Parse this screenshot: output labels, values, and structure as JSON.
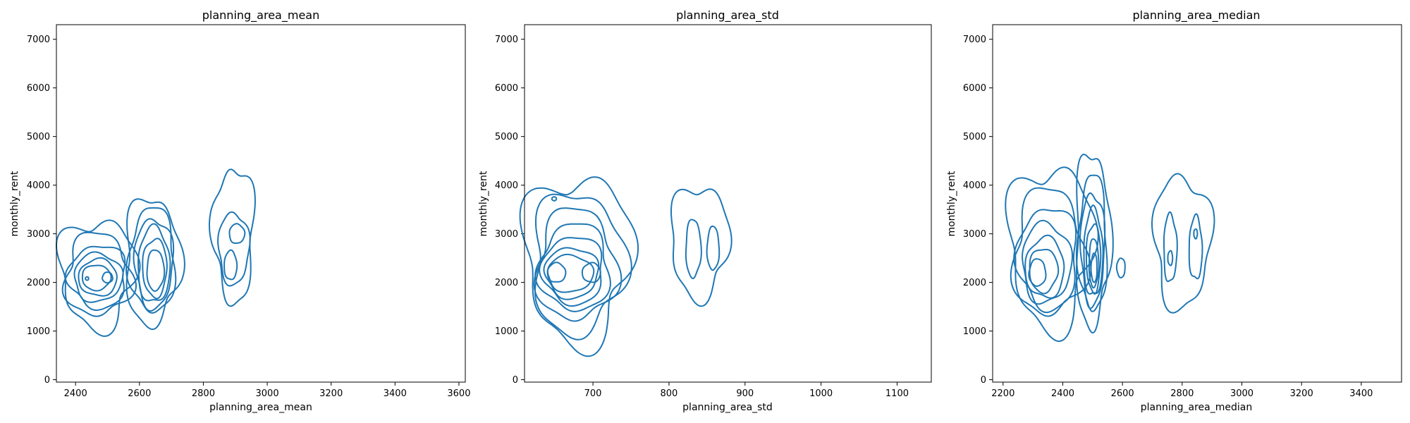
{
  "colors": {
    "contour": "#1f77b4",
    "axes": "#000000",
    "background": "#ffffff"
  },
  "chart_data": [
    {
      "type": "kde-contour",
      "title": "planning_area_mean",
      "xlabel": "planning_area_mean",
      "ylabel": "monthly_rent",
      "xlim": [
        2340,
        3620
      ],
      "ylim": [
        -50,
        7300
      ],
      "xticks": [
        2400,
        2600,
        2800,
        3000,
        3200,
        3400,
        3600
      ],
      "yticks": [
        0,
        1000,
        2000,
        3000,
        4000,
        5000,
        6000,
        7000
      ],
      "grid": false,
      "levels": [
        {
          "cx": 2468,
          "cy": 2200,
          "rx": 118,
          "ry": 1100,
          "w": 0.25
        },
        {
          "cx": 2640,
          "cy": 2450,
          "rx": 86,
          "ry": 1300,
          "w": 0.2
        },
        {
          "cx": 2470,
          "cy": 2150,
          "rx": 103,
          "ry": 850,
          "w": 0.2
        },
        {
          "cx": 2640,
          "cy": 2450,
          "rx": 72,
          "ry": 1080,
          "w": 0.15
        },
        {
          "cx": 2470,
          "cy": 2120,
          "rx": 90,
          "ry": 650,
          "w": 0.15
        },
        {
          "cx": 2645,
          "cy": 2400,
          "rx": 60,
          "ry": 920,
          "w": 0.12
        },
        {
          "cx": 2470,
          "cy": 2100,
          "rx": 75,
          "ry": 500,
          "w": 0.1
        },
        {
          "cx": 2645,
          "cy": 2350,
          "rx": 50,
          "ry": 780,
          "w": 0.1
        },
        {
          "cx": 2470,
          "cy": 2100,
          "rx": 60,
          "ry": 380,
          "w": 0.08
        },
        {
          "cx": 2648,
          "cy": 2300,
          "rx": 38,
          "ry": 600,
          "w": 0.08
        },
        {
          "cx": 2465,
          "cy": 2100,
          "rx": 45,
          "ry": 260,
          "w": 0.06
        },
        {
          "cx": 2650,
          "cy": 2250,
          "rx": 27,
          "ry": 420,
          "w": 0.06
        },
        {
          "cx": 2500,
          "cy": 2100,
          "rx": 16,
          "ry": 110,
          "w": 0.05
        },
        {
          "cx": 2436,
          "cy": 2080,
          "rx": 5,
          "ry": 35,
          "w": 0.05
        },
        {
          "cx": 2895,
          "cy": 3000,
          "rx": 64,
          "ry": 1380,
          "w": 0.22
        },
        {
          "cx": 2895,
          "cy": 2700,
          "rx": 48,
          "ry": 740,
          "w": 0.12
        },
        {
          "cx": 2905,
          "cy": 3000,
          "rx": 24,
          "ry": 200,
          "w": 0.06
        },
        {
          "cx": 2885,
          "cy": 2350,
          "rx": 20,
          "ry": 300,
          "w": 0.06
        }
      ]
    },
    {
      "type": "kde-contour",
      "title": "planning_area_std",
      "xlabel": "planning_area_std",
      "ylabel": "monthly_rent",
      "xlim": [
        610,
        1145
      ],
      "ylim": [
        -50,
        7300
      ],
      "xticks": [
        700,
        800,
        900,
        1000,
        1100
      ],
      "yticks": [
        0,
        1000,
        2000,
        3000,
        4000,
        5000,
        6000,
        7000
      ],
      "grid": false,
      "levels": [
        {
          "cx": 680,
          "cy": 2500,
          "rx": 70,
          "ry": 1700,
          "w": 0.25
        },
        {
          "cx": 680,
          "cy": 2400,
          "rx": 60,
          "ry": 1450,
          "w": 0.2
        },
        {
          "cx": 678,
          "cy": 2350,
          "rx": 52,
          "ry": 1150,
          "w": 0.18
        },
        {
          "cx": 676,
          "cy": 2300,
          "rx": 46,
          "ry": 900,
          "w": 0.15
        },
        {
          "cx": 674,
          "cy": 2250,
          "rx": 40,
          "ry": 700,
          "w": 0.12
        },
        {
          "cx": 672,
          "cy": 2200,
          "rx": 35,
          "ry": 520,
          "w": 0.1
        },
        {
          "cx": 670,
          "cy": 2180,
          "rx": 30,
          "ry": 380,
          "w": 0.08
        },
        {
          "cx": 652,
          "cy": 2200,
          "rx": 12,
          "ry": 200,
          "w": 0.06
        },
        {
          "cx": 698,
          "cy": 2200,
          "rx": 12,
          "ry": 200,
          "w": 0.06
        },
        {
          "cx": 649,
          "cy": 3720,
          "rx": 3,
          "ry": 40,
          "w": 0.05
        },
        {
          "cx": 840,
          "cy": 2850,
          "rx": 38,
          "ry": 1150,
          "w": 0.2
        },
        {
          "cx": 832,
          "cy": 2700,
          "rx": 10,
          "ry": 600,
          "w": 0.08
        },
        {
          "cx": 858,
          "cy": 2700,
          "rx": 8,
          "ry": 450,
          "w": 0.06
        }
      ]
    },
    {
      "type": "kde-contour",
      "title": "planning_area_median",
      "xlabel": "planning_area_median",
      "ylabel": "monthly_rent",
      "xlim": [
        2165,
        3535
      ],
      "ylim": [
        -50,
        7300
      ],
      "xticks": [
        2200,
        2400,
        2600,
        2800,
        3000,
        3200,
        3400
      ],
      "yticks": [
        0,
        1000,
        2000,
        3000,
        4000,
        5000,
        6000,
        7000
      ],
      "grid": false,
      "levels": [
        {
          "cx": 2360,
          "cy": 2750,
          "rx": 140,
          "ry": 1650,
          "w": 0.25
        },
        {
          "cx": 2500,
          "cy": 2900,
          "rx": 58,
          "ry": 1780,
          "w": 0.2
        },
        {
          "cx": 2355,
          "cy": 2600,
          "rx": 120,
          "ry": 1300,
          "w": 0.2
        },
        {
          "cx": 2500,
          "cy": 2800,
          "rx": 48,
          "ry": 1400,
          "w": 0.15
        },
        {
          "cx": 2350,
          "cy": 2500,
          "rx": 100,
          "ry": 1050,
          "w": 0.15
        },
        {
          "cx": 2500,
          "cy": 2700,
          "rx": 40,
          "ry": 1150,
          "w": 0.12
        },
        {
          "cx": 2345,
          "cy": 2400,
          "rx": 82,
          "ry": 820,
          "w": 0.12
        },
        {
          "cx": 2502,
          "cy": 2600,
          "rx": 32,
          "ry": 900,
          "w": 0.1
        },
        {
          "cx": 2340,
          "cy": 2300,
          "rx": 65,
          "ry": 620,
          "w": 0.1
        },
        {
          "cx": 2503,
          "cy": 2500,
          "rx": 24,
          "ry": 700,
          "w": 0.08
        },
        {
          "cx": 2335,
          "cy": 2250,
          "rx": 48,
          "ry": 450,
          "w": 0.08
        },
        {
          "cx": 2504,
          "cy": 2400,
          "rx": 16,
          "ry": 500,
          "w": 0.06
        },
        {
          "cx": 2315,
          "cy": 2200,
          "rx": 28,
          "ry": 280,
          "w": 0.06
        },
        {
          "cx": 2505,
          "cy": 2300,
          "rx": 10,
          "ry": 300,
          "w": 0.05
        },
        {
          "cx": 2595,
          "cy": 2300,
          "rx": 14,
          "ry": 200,
          "w": 0.05
        },
        {
          "cx": 2800,
          "cy": 2850,
          "rx": 95,
          "ry": 1350,
          "w": 0.2
        },
        {
          "cx": 2760,
          "cy": 2700,
          "rx": 22,
          "ry": 700,
          "w": 0.1
        },
        {
          "cx": 2845,
          "cy": 2700,
          "rx": 22,
          "ry": 650,
          "w": 0.1
        },
        {
          "cx": 2760,
          "cy": 2500,
          "rx": 8,
          "ry": 150,
          "w": 0.06
        },
        {
          "cx": 2845,
          "cy": 3000,
          "rx": 6,
          "ry": 100,
          "w": 0.06
        }
      ]
    }
  ]
}
